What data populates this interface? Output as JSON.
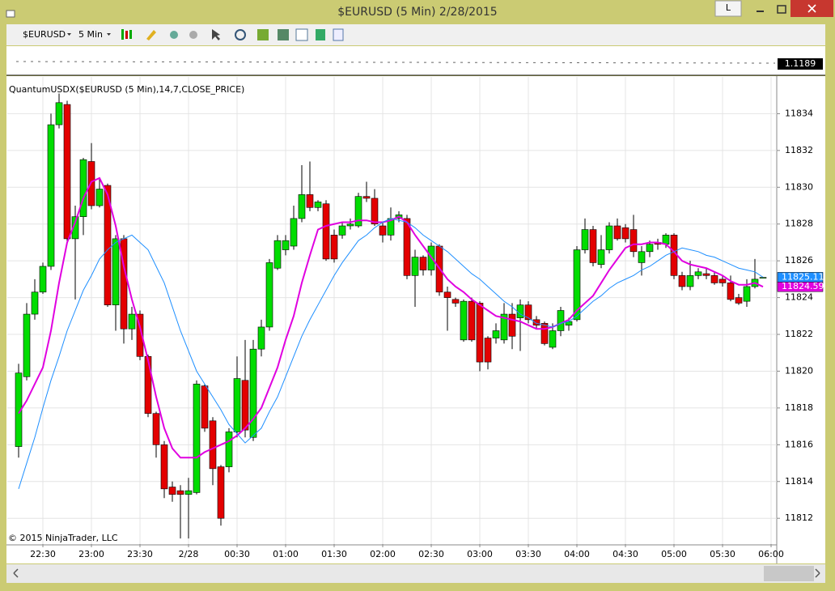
{
  "window": {
    "title": "$EURUSD (5 Min)  2/28/2015",
    "button": "L"
  },
  "toolbar": {
    "instrument": "$EURUSD",
    "interval": "5 Min"
  },
  "overview": {
    "price_label": "1.1189"
  },
  "chart_data": {
    "type": "candlestick",
    "title": "QuantumUSDX($EURUSD (5 Min),14,7,CLOSE_PRICE)",
    "copyright": "© 2015 NinjaTrader, LLC",
    "categories": [
      null,
      null,
      null,
      "22:30",
      null,
      null,
      null,
      null,
      null,
      "23:00",
      null,
      null,
      null,
      null,
      null,
      "23:30",
      null,
      null,
      null,
      null,
      null,
      "2/28",
      null,
      null,
      null,
      null,
      null,
      "00:30",
      null,
      null,
      null,
      null,
      null,
      "01:00",
      null,
      null,
      null,
      null,
      null,
      "01:30",
      null,
      null,
      null,
      null,
      null,
      "02:00",
      null,
      null,
      null,
      null,
      null,
      "02:30",
      null,
      null,
      null,
      null,
      null,
      "03:00",
      null,
      null,
      null,
      null,
      null,
      "03:30",
      null,
      null,
      null,
      null,
      null,
      "04:00",
      null,
      null,
      null,
      null,
      null,
      "04:30",
      null,
      null,
      null,
      null,
      null,
      "05:00",
      null,
      null,
      null,
      null,
      null,
      "05:30",
      null,
      null,
      null,
      null,
      null,
      "06:00"
    ],
    "open": [
      11815.9,
      11819.7,
      11823.1,
      11824.3,
      11825.7,
      11833.4,
      11834.5,
      11827.2,
      11828.4,
      11831.4,
      11829.0,
      11830.1,
      11823.6,
      11827.2,
      11822.3,
      11823.1,
      11820.8,
      11817.7,
      11816.0,
      11813.7,
      11813.5,
      11813.3,
      11813.4,
      11819.2,
      11817.3,
      11814.8,
      11814.8,
      11816.7,
      11819.5,
      11816.4,
      11821.2,
      11822.4,
      11825.6,
      11826.6,
      11826.8,
      11828.3,
      11829.6,
      11828.9,
      11829.1,
      11827.4,
      11827.4,
      11827.9,
      11827.9,
      11829.5,
      11829.4,
      11827.9,
      11827.4,
      11828.3,
      11828.3,
      11825.2,
      11826.2,
      11825.5,
      11826.8,
      11824.3,
      11823.9,
      11821.7,
      11823.8,
      11823.7,
      11821.8,
      11821.8,
      11821.7,
      11823.1,
      11822.9,
      11823.6,
      11822.8,
      11822.6,
      11821.3,
      11822.2,
      11822.5,
      11822.8,
      11826.6,
      11827.7,
      11825.8,
      11826.6,
      11827.9,
      11827.8,
      11827.7,
      11825.9,
      11826.5,
      11827.0,
      11826.9,
      11827.4,
      11825.2,
      11824.6,
      11825.2,
      11825.3,
      11825.2,
      11825.0,
      11824.8,
      11824.0,
      11823.8,
      11824.6,
      11825.1,
      null
    ],
    "high": [
      11820.4,
      11823.7,
      11825.0,
      11825.9,
      11834.0,
      11835.1,
      11834.7,
      11829.0,
      11831.6,
      11832.4,
      11830.5,
      11830.2,
      11827.4,
      11827.4,
      11823.5,
      11823.3,
      11820.9,
      11817.8,
      11816.2,
      11814.0,
      11813.8,
      11814.2,
      11819.5,
      11819.3,
      11817.5,
      11814.9,
      11816.9,
      11820.8,
      11821.7,
      11821.7,
      11822.8,
      11826.1,
      11827.4,
      11827.4,
      11829.0,
      11831.2,
      11831.4,
      11829.3,
      11829.3,
      11827.7,
      11828.1,
      11828.3,
      11829.7,
      11830.3,
      11829.9,
      11828.1,
      11828.9,
      11828.7,
      11828.5,
      11826.6,
      11826.3,
      11827.0,
      11826.9,
      11824.6,
      11824.0,
      11823.9,
      11824.0,
      11823.8,
      11821.9,
      11822.6,
      11823.7,
      11823.7,
      11823.9,
      11823.8,
      11823.0,
      11822.7,
      11822.6,
      11823.5,
      11822.9,
      11826.8,
      11828.3,
      11827.9,
      11827.4,
      11828.1,
      11828.3,
      11828.0,
      11828.5,
      11826.8,
      11827.1,
      11827.2,
      11827.5,
      11827.5,
      11825.4,
      11826.0,
      11825.6,
      11825.6,
      11825.4,
      11825.2,
      11825.2,
      11824.2,
      11825.0,
      11826.1,
      11825.1,
      null
    ],
    "low": [
      11815.3,
      11819.5,
      11822.8,
      11824.2,
      11825.5,
      11833.2,
      11827.0,
      11823.9,
      11827.4,
      11828.8,
      11828.9,
      11823.5,
      11822.2,
      11821.5,
      11821.7,
      11820.6,
      11817.5,
      11815.3,
      11813.1,
      11812.9,
      11810.9,
      11810.9,
      11813.3,
      11816.7,
      11813.8,
      11811.6,
      11814.5,
      11816.4,
      11816.4,
      11816.2,
      11820.8,
      11822.2,
      11825.5,
      11826.3,
      11826.6,
      11828.1,
      11828.7,
      11828.7,
      11826.0,
      11825.9,
      11827.2,
      11827.7,
      11827.8,
      11829.2,
      11827.9,
      11827.0,
      11827.1,
      11828.1,
      11825.0,
      11823.5,
      11825.2,
      11825.2,
      11824.1,
      11822.2,
      11823.5,
      11821.6,
      11821.6,
      11820.0,
      11820.1,
      11821.5,
      11821.5,
      11821.2,
      11821.1,
      11822.6,
      11822.3,
      11821.4,
      11821.2,
      11821.9,
      11822.2,
      11822.7,
      11826.4,
      11825.7,
      11825.6,
      11826.4,
      11827.1,
      11827.0,
      11826.2,
      11825.2,
      11826.2,
      11826.6,
      11826.7,
      11825.0,
      11824.4,
      11824.4,
      11825.0,
      11825.0,
      11824.7,
      11824.6,
      11823.8,
      11823.6,
      11823.5,
      11824.5,
      11825.1,
      null
    ],
    "close": [
      11819.9,
      11823.1,
      11824.3,
      11825.7,
      11833.4,
      11834.6,
      11827.2,
      11828.4,
      11831.5,
      11829.0,
      11829.9,
      11823.6,
      11827.2,
      11822.3,
      11823.1,
      11820.8,
      11817.7,
      11816.0,
      11813.6,
      11813.3,
      11813.3,
      11813.5,
      11819.3,
      11816.9,
      11814.7,
      11812.0,
      11816.7,
      11819.6,
      11816.8,
      11821.2,
      11822.4,
      11825.9,
      11827.1,
      11827.1,
      11828.3,
      11829.6,
      11828.9,
      11829.2,
      11826.1,
      11826.1,
      11827.9,
      11828.0,
      11829.5,
      11829.4,
      11828.0,
      11827.4,
      11828.3,
      11828.5,
      11825.2,
      11826.2,
      11825.5,
      11826.8,
      11824.3,
      11824.0,
      11823.7,
      11823.8,
      11821.7,
      11820.5,
      11820.5,
      11822.2,
      11823.1,
      11821.9,
      11823.6,
      11822.8,
      11822.5,
      11821.5,
      11822.2,
      11823.3,
      11822.7,
      11826.6,
      11827.7,
      11825.9,
      11826.6,
      11827.9,
      11827.2,
      11827.2,
      11826.5,
      11826.5,
      11826.9,
      11826.9,
      11827.4,
      11825.2,
      11824.6,
      11825.2,
      11825.4,
      11825.2,
      11824.8,
      11824.8,
      11823.9,
      11823.7,
      11824.6,
      11825.0,
      11825.1,
      null
    ],
    "up_color": "#00dd00",
    "down_color": "#e30000",
    "series": [
      {
        "color": "#e000e0",
        "values": [
          11817.7,
          11818.4,
          11819.3,
          11820.2,
          11822.2,
          11824.8,
          11827.0,
          11828.1,
          11829.4,
          11830.3,
          11830.5,
          11829.6,
          11827.9,
          11825.7,
          11823.9,
          11822.4,
          11820.6,
          11818.6,
          11816.9,
          11815.8,
          11815.3,
          11815.3,
          11815.3,
          11815.6,
          11815.8,
          11816.0,
          11816.2,
          11816.5,
          11816.9,
          11817.4,
          11818.0,
          11819.1,
          11820.2,
          11821.7,
          11823.0,
          11824.8,
          11826.3,
          11827.7,
          11827.9,
          11828.0,
          11828.1,
          11828.1,
          11828.2,
          11828.2,
          11828.1,
          11828.1,
          11828.2,
          11828.4,
          11828.1,
          11827.4,
          11826.8,
          11826.2,
          11825.6,
          11825.0,
          11824.6,
          11824.3,
          11823.9,
          11823.6,
          11823.3,
          11823.0,
          11822.9,
          11822.8,
          11822.7,
          11822.5,
          11822.3,
          11822.3,
          11822.4,
          11822.6,
          11822.8,
          11823.3,
          11823.7,
          11824.1,
          11824.8,
          11825.5,
          11826.1,
          11826.7,
          11826.9,
          11826.9,
          11827.0,
          11827.0,
          11826.9,
          11826.5,
          11826.0,
          11825.8,
          11825.7,
          11825.6,
          11825.4,
          11825.2,
          11824.9,
          11824.7,
          11824.7,
          11824.8,
          11824.59,
          null
        ]
      },
      {
        "color": "#1e8fff",
        "values": [
          11813.6,
          11815.0,
          11816.4,
          11818.0,
          11819.5,
          11820.8,
          11822.2,
          11823.3,
          11824.4,
          11825.2,
          11826.1,
          11826.6,
          11827.0,
          11827.2,
          11827.4,
          11827.0,
          11826.6,
          11825.7,
          11824.8,
          11823.5,
          11822.2,
          11821.1,
          11820.0,
          11819.3,
          11818.6,
          11817.9,
          11817.1,
          11816.6,
          11816.1,
          11816.5,
          11816.9,
          11817.8,
          11818.6,
          11819.7,
          11820.8,
          11821.9,
          11822.8,
          11823.6,
          11824.4,
          11825.2,
          11825.9,
          11826.5,
          11827.1,
          11827.4,
          11827.8,
          11828.1,
          11828.3,
          11828.2,
          11828.1,
          11827.8,
          11827.4,
          11827.1,
          11826.8,
          11826.5,
          11826.1,
          11825.7,
          11825.3,
          11825.0,
          11824.6,
          11824.2,
          11823.8,
          11823.5,
          11823.1,
          11822.9,
          11822.6,
          11822.5,
          11822.4,
          11822.6,
          11822.7,
          11823.0,
          11823.4,
          11823.8,
          11824.1,
          11824.5,
          11824.8,
          11825.0,
          11825.2,
          11825.5,
          11825.7,
          11826.0,
          11826.3,
          11826.5,
          11826.7,
          11826.6,
          11826.5,
          11826.3,
          11826.2,
          11826.0,
          11825.8,
          11825.6,
          11825.5,
          11825.4,
          11825.11,
          null
        ]
      }
    ],
    "ylim": [
      11810.6,
      11836.0
    ],
    "yticks": [
      11812,
      11814,
      11816,
      11818,
      11820,
      11822,
      11824,
      11826,
      11828,
      11830,
      11832,
      11834
    ],
    "grid": true
  }
}
